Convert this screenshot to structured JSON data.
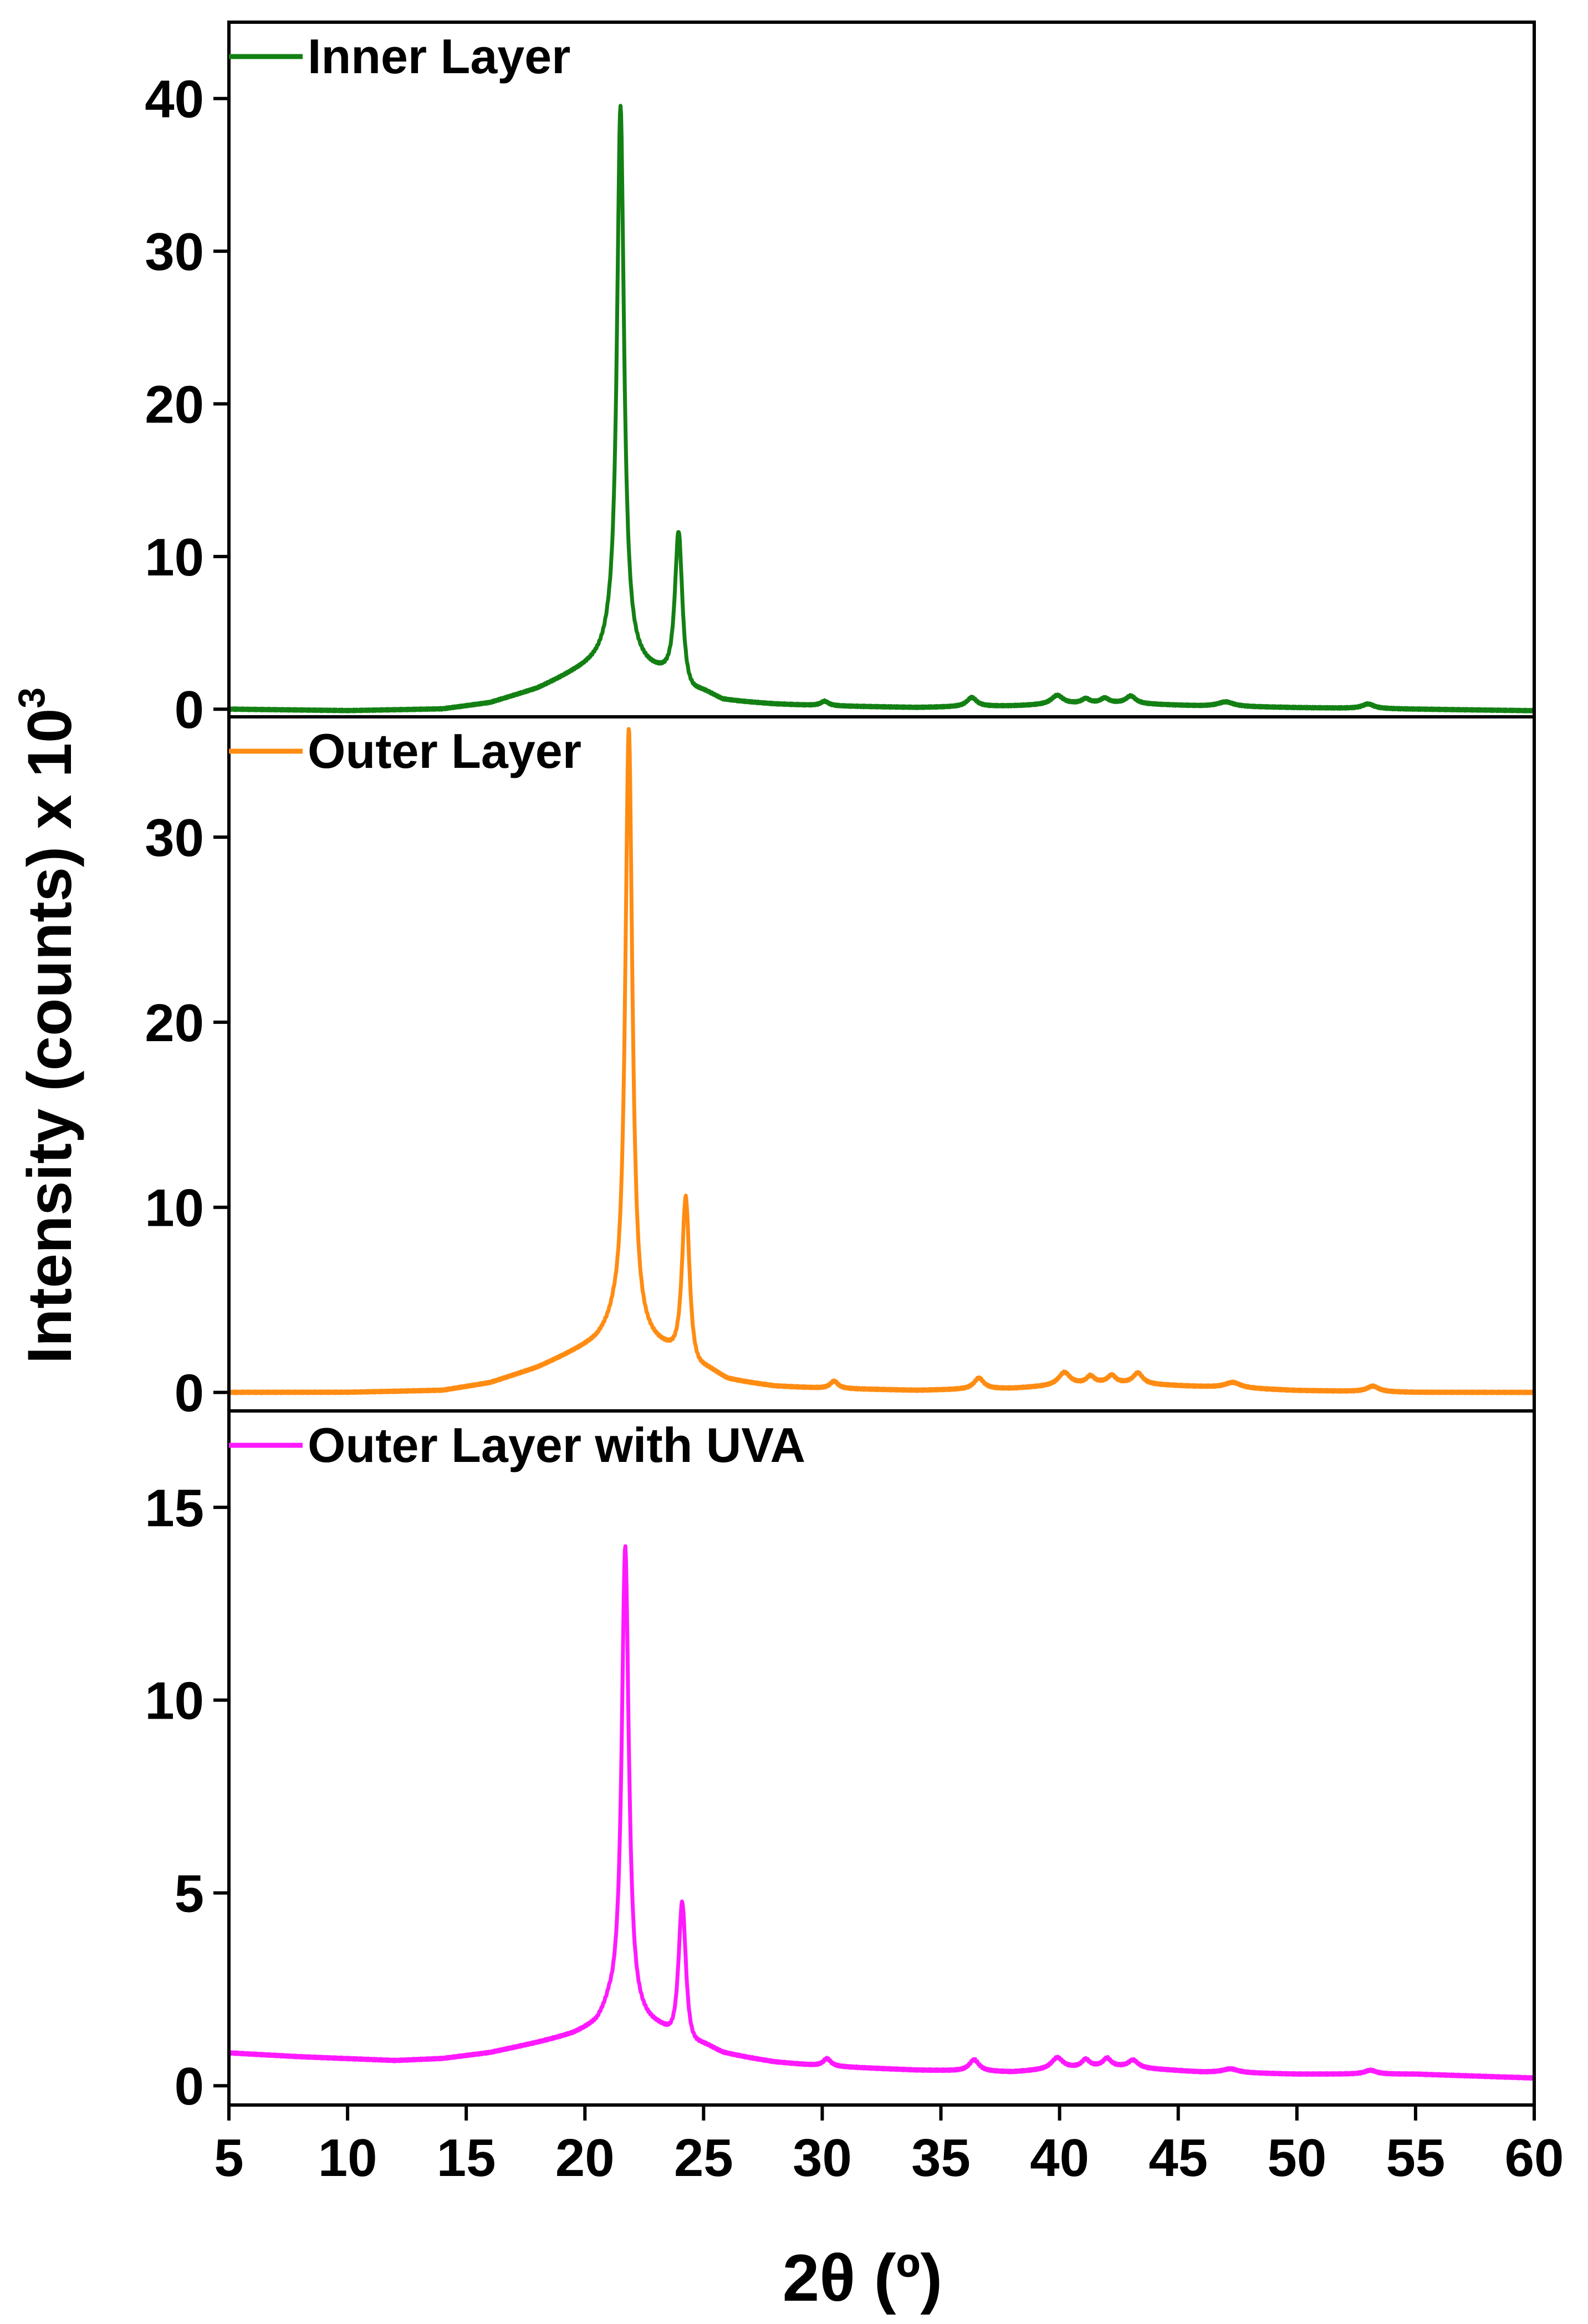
{
  "chart_data": {
    "type": "line",
    "ylabel": "Intensity (counts) x 10",
    "ylabel_superscript": "3",
    "xlabel": "2θ (º)",
    "xlim": [
      5,
      60
    ],
    "xticks": [
      5,
      10,
      15,
      20,
      25,
      30,
      35,
      40,
      45,
      50,
      55,
      60
    ],
    "legend_placement": "top-left",
    "grid": false,
    "panels": [
      {
        "name": "Inner Layer",
        "color": "#138013",
        "ylim": [
          -0.5,
          45
        ],
        "yticks": [
          0,
          10,
          20,
          30,
          40
        ],
        "baseline": [
          [
            5,
            0.0
          ],
          [
            10,
            -0.1
          ],
          [
            14,
            0.0
          ],
          [
            16,
            0.4
          ],
          [
            18,
            1.3
          ],
          [
            19.5,
            2.3
          ],
          [
            20.5,
            2.9
          ],
          [
            21.0,
            3.3
          ]
        ],
        "tail": [
          [
            25.8,
            0.5
          ],
          [
            28,
            0.3
          ],
          [
            30,
            0.2
          ],
          [
            34,
            0.1
          ],
          [
            38,
            0.2
          ],
          [
            42,
            0.4
          ],
          [
            46,
            0.2
          ],
          [
            50,
            0.1
          ],
          [
            55,
            0.0
          ],
          [
            60,
            -0.1
          ]
        ],
        "peaks": [
          {
            "x": 21.5,
            "height": 36.5,
            "width": 0.18
          },
          {
            "x": 23.95,
            "height": 11.0,
            "width": 0.2
          },
          {
            "x": 30.1,
            "height": 0.3,
            "width": 0.2
          },
          {
            "x": 36.3,
            "height": 0.6,
            "width": 0.25
          },
          {
            "x": 39.9,
            "height": 0.6,
            "width": 0.3
          },
          {
            "x": 41.1,
            "height": 0.3,
            "width": 0.2
          },
          {
            "x": 41.9,
            "height": 0.3,
            "width": 0.2
          },
          {
            "x": 43.0,
            "height": 0.5,
            "width": 0.25
          },
          {
            "x": 47.0,
            "height": 0.3,
            "width": 0.4
          },
          {
            "x": 53.0,
            "height": 0.3,
            "width": 0.3
          }
        ]
      },
      {
        "name": "Outer Layer",
        "color": "#ff8c12",
        "ylim": [
          -1.0,
          36.5
        ],
        "yticks": [
          0,
          10,
          20,
          30
        ],
        "baseline": [
          [
            5,
            0.0
          ],
          [
            10,
            0.0
          ],
          [
            14,
            0.1
          ],
          [
            16,
            0.5
          ],
          [
            18,
            1.3
          ],
          [
            19.5,
            2.1
          ],
          [
            20.5,
            2.6
          ],
          [
            21.2,
            3.2
          ]
        ],
        "tail": [
          [
            26.0,
            0.6
          ],
          [
            28,
            0.3
          ],
          [
            30,
            0.2
          ],
          [
            34,
            0.1
          ],
          [
            38,
            0.2
          ],
          [
            42,
            0.5
          ],
          [
            46,
            0.3
          ],
          [
            50,
            0.1
          ],
          [
            55,
            0.0
          ],
          [
            60,
            0.0
          ]
        ],
        "peaks": [
          {
            "x": 21.85,
            "height": 33.0,
            "width": 0.18
          },
          {
            "x": 24.25,
            "height": 10.0,
            "width": 0.2
          },
          {
            "x": 30.5,
            "height": 0.4,
            "width": 0.2
          },
          {
            "x": 36.6,
            "height": 0.6,
            "width": 0.25
          },
          {
            "x": 40.2,
            "height": 0.7,
            "width": 0.3
          },
          {
            "x": 41.3,
            "height": 0.4,
            "width": 0.2
          },
          {
            "x": 42.2,
            "height": 0.4,
            "width": 0.2
          },
          {
            "x": 43.3,
            "height": 0.6,
            "width": 0.25
          },
          {
            "x": 47.3,
            "height": 0.3,
            "width": 0.4
          },
          {
            "x": 53.2,
            "height": 0.3,
            "width": 0.3
          }
        ]
      },
      {
        "name": "Outer Layer with UVA",
        "color": "#ff19ff",
        "ylim": [
          -0.5,
          17.5
        ],
        "yticks": [
          0,
          5,
          10,
          15
        ],
        "baseline": [
          [
            5,
            0.85
          ],
          [
            8,
            0.75
          ],
          [
            12,
            0.65
          ],
          [
            14,
            0.7
          ],
          [
            16,
            0.85
          ],
          [
            18,
            1.1
          ],
          [
            19.5,
            1.3
          ],
          [
            20.5,
            1.5
          ],
          [
            21.0,
            1.8
          ]
        ],
        "tail": [
          [
            25.8,
            0.8
          ],
          [
            28,
            0.6
          ],
          [
            30,
            0.5
          ],
          [
            34,
            0.4
          ],
          [
            38,
            0.35
          ],
          [
            42,
            0.5
          ],
          [
            46,
            0.35
          ],
          [
            50,
            0.3
          ],
          [
            55,
            0.3
          ],
          [
            60,
            0.2
          ]
        ],
        "peaks": [
          {
            "x": 21.7,
            "height": 12.3,
            "width": 0.18
          },
          {
            "x": 24.1,
            "height": 4.2,
            "width": 0.2
          },
          {
            "x": 30.2,
            "height": 0.2,
            "width": 0.2
          },
          {
            "x": 36.4,
            "height": 0.3,
            "width": 0.25
          },
          {
            "x": 39.9,
            "height": 0.3,
            "width": 0.3
          },
          {
            "x": 41.1,
            "height": 0.2,
            "width": 0.2
          },
          {
            "x": 42.0,
            "height": 0.2,
            "width": 0.2
          },
          {
            "x": 43.1,
            "height": 0.2,
            "width": 0.25
          },
          {
            "x": 47.2,
            "height": 0.1,
            "width": 0.4
          },
          {
            "x": 53.1,
            "height": 0.1,
            "width": 0.3
          }
        ]
      }
    ]
  }
}
